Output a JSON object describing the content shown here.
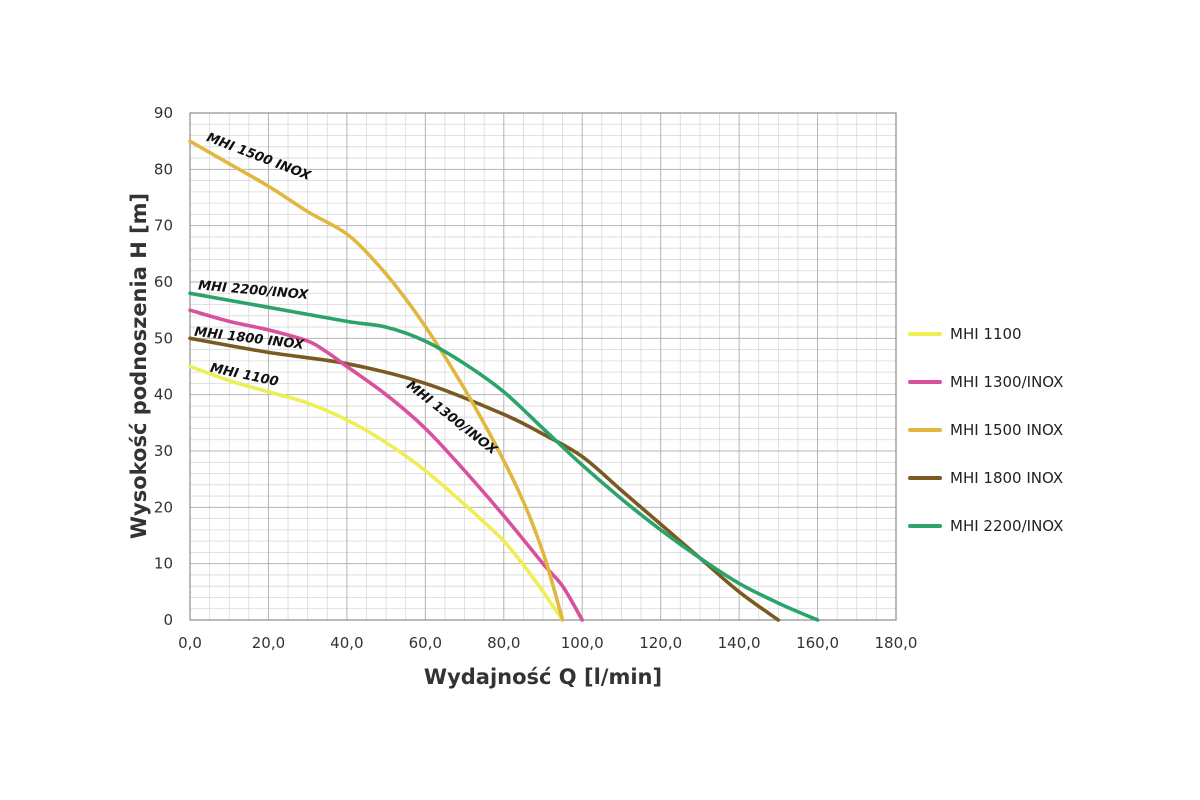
{
  "chart_data": {
    "type": "line",
    "title": "",
    "xlabel": "Wydajność Q [l/min]",
    "ylabel": "Wysokość podnoszenia H [m]",
    "xlim": [
      0,
      180
    ],
    "ylim": [
      0,
      90
    ],
    "x_ticks": [
      "0,0",
      "20,0",
      "40,0",
      "60,0",
      "80,0",
      "100,0",
      "120,0",
      "140,0",
      "160,0",
      "180,0"
    ],
    "y_ticks": [
      "0",
      "10",
      "20",
      "30",
      "40",
      "50",
      "60",
      "70",
      "80",
      "90"
    ],
    "grid": true,
    "legend_position": "right",
    "series": [
      {
        "name": "MHI 1100",
        "color": "#eeee55",
        "curve_label": "MHI 1100",
        "points": [
          [
            0,
            45
          ],
          [
            10,
            42.5
          ],
          [
            20,
            40.5
          ],
          [
            30,
            38.5
          ],
          [
            40,
            35.5
          ],
          [
            50,
            31.5
          ],
          [
            60,
            26.5
          ],
          [
            70,
            20.5
          ],
          [
            80,
            14
          ],
          [
            88,
            7
          ],
          [
            92,
            3
          ],
          [
            95,
            0
          ]
        ]
      },
      {
        "name": "MHI 1300/INOX",
        "color": "#d9519c",
        "curve_label": "MHI 1300/INOX",
        "points": [
          [
            0,
            55
          ],
          [
            10,
            53
          ],
          [
            20,
            51.5
          ],
          [
            30,
            49.5
          ],
          [
            35,
            47.5
          ],
          [
            40,
            45
          ],
          [
            50,
            40
          ],
          [
            60,
            34
          ],
          [
            70,
            26.5
          ],
          [
            80,
            18.5
          ],
          [
            90,
            10
          ],
          [
            95,
            6
          ],
          [
            100,
            0
          ]
        ]
      },
      {
        "name": "MHI 1500 INOX",
        "color": "#e0b840",
        "curve_label": "MHI 1500 INOX",
        "points": [
          [
            0,
            85
          ],
          [
            10,
            81
          ],
          [
            20,
            77
          ],
          [
            30,
            72.5
          ],
          [
            40,
            68.5
          ],
          [
            48,
            63
          ],
          [
            55,
            57
          ],
          [
            62,
            50
          ],
          [
            70,
            41
          ],
          [
            78,
            31
          ],
          [
            85,
            21
          ],
          [
            90,
            12
          ],
          [
            93,
            5
          ],
          [
            95,
            0
          ]
        ]
      },
      {
        "name": "MHI 1800 INOX",
        "color": "#7a5a20",
        "curve_label": "MHI 1800 INOX",
        "points": [
          [
            0,
            50
          ],
          [
            20,
            47.5
          ],
          [
            40,
            45.5
          ],
          [
            60,
            42
          ],
          [
            80,
            36.5
          ],
          [
            90,
            33
          ],
          [
            100,
            29
          ],
          [
            110,
            23
          ],
          [
            120,
            17
          ],
          [
            130,
            11
          ],
          [
            140,
            5
          ],
          [
            150,
            0
          ]
        ]
      },
      {
        "name": "MHI 2200/INOX",
        "color": "#2ba36b",
        "curve_label": "MHI 2200/INOX",
        "points": [
          [
            0,
            58
          ],
          [
            20,
            55.5
          ],
          [
            40,
            53
          ],
          [
            50,
            52
          ],
          [
            60,
            49.5
          ],
          [
            70,
            45.5
          ],
          [
            80,
            40.5
          ],
          [
            90,
            34
          ],
          [
            100,
            27.5
          ],
          [
            110,
            21.5
          ],
          [
            120,
            16
          ],
          [
            130,
            11
          ],
          [
            140,
            6.5
          ],
          [
            150,
            3
          ],
          [
            160,
            0
          ]
        ]
      }
    ]
  }
}
